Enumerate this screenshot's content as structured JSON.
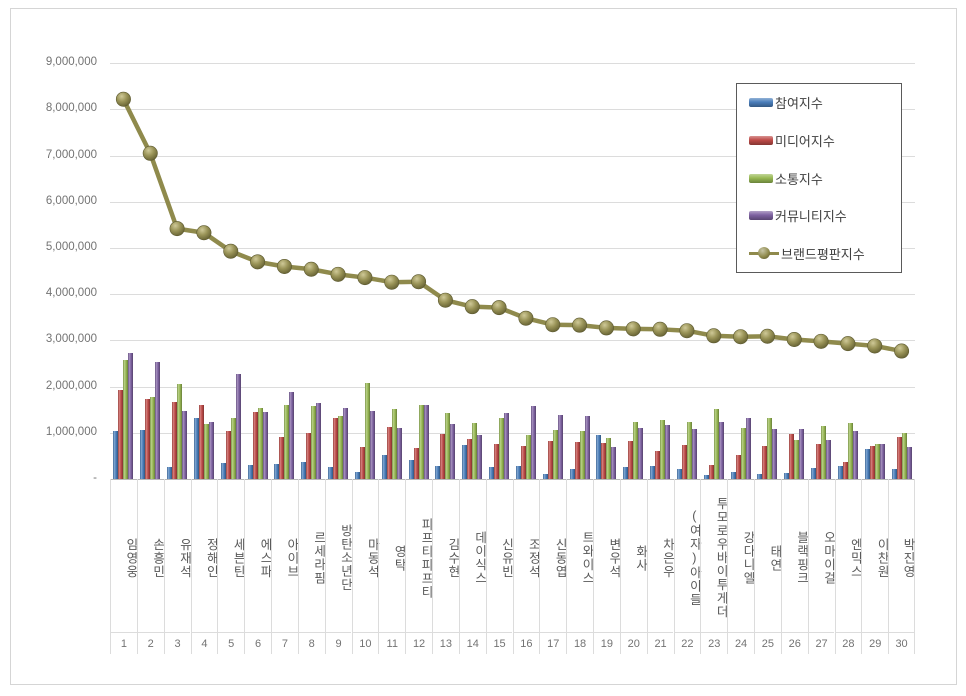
{
  "chart_data": {
    "type": "bar",
    "combo": "grouped 3D bars + line overlay",
    "title": "",
    "categories": [
      "임영웅",
      "손흥민",
      "유재석",
      "정해인",
      "세븐틴",
      "에스파",
      "아이브",
      "르세라핌",
      "방탄소년단",
      "마동석",
      "영탁",
      "피프티피프티",
      "김수현",
      "데이식스",
      "신유빈",
      "조정석",
      "신동엽",
      "트와이스",
      "변우석",
      "화사",
      "차은우",
      "(여자)아이들",
      "투모로우바이투게더",
      "강다니엘",
      "태연",
      "블랙핑크",
      "오마이걸",
      "엔믹스",
      "이찬원",
      "박진영"
    ],
    "ranks": [
      1,
      2,
      3,
      4,
      5,
      6,
      7,
      8,
      9,
      10,
      11,
      12,
      13,
      14,
      15,
      16,
      17,
      18,
      19,
      20,
      21,
      22,
      23,
      24,
      25,
      26,
      27,
      28,
      29,
      30
    ],
    "series": [
      {
        "name": "참여지수",
        "type": "bar",
        "color": "#4A7EBB",
        "values": [
          1040000,
          1050000,
          250000,
          1320000,
          340000,
          310000,
          320000,
          370000,
          260000,
          160000,
          530000,
          410000,
          290000,
          730000,
          260000,
          290000,
          110000,
          210000,
          960000,
          260000,
          280000,
          210000,
          80000,
          160000,
          110000,
          120000,
          230000,
          280000,
          640000,
          210000
        ]
      },
      {
        "name": "미디어지수",
        "type": "bar",
        "color": "#BE4B48",
        "values": [
          1920000,
          1740000,
          1670000,
          1610000,
          1040000,
          1460000,
          910000,
          1000000,
          1330000,
          700000,
          1130000,
          680000,
          980000,
          870000,
          750000,
          720000,
          830000,
          800000,
          780000,
          820000,
          600000,
          730000,
          310000,
          520000,
          710000,
          980000,
          750000,
          370000,
          710000,
          910000
        ]
      },
      {
        "name": "소통지수",
        "type": "bar",
        "color": "#98B954",
        "values": [
          2580000,
          1770000,
          2060000,
          1200000,
          1310000,
          1540000,
          1610000,
          1590000,
          1360000,
          2070000,
          1520000,
          1610000,
          1430000,
          1210000,
          1330000,
          960000,
          1050000,
          1030000,
          890000,
          1230000,
          1270000,
          1230000,
          1520000,
          1110000,
          1310000,
          850000,
          1140000,
          1220000,
          750000,
          1000000
        ]
      },
      {
        "name": "커뮤니티지수",
        "type": "bar",
        "color": "#7E62A1",
        "values": [
          2720000,
          2540000,
          1470000,
          1230000,
          2280000,
          1450000,
          1890000,
          1650000,
          1540000,
          1480000,
          1110000,
          1600000,
          1180000,
          950000,
          1430000,
          1580000,
          1380000,
          1360000,
          700000,
          1100000,
          1160000,
          1090000,
          1230000,
          1330000,
          1090000,
          1090000,
          840000,
          1040000,
          750000,
          700000
        ]
      },
      {
        "name": "브랜드평판지수",
        "type": "line",
        "color": "#8F8A4C",
        "values": [
          8220000,
          7050000,
          5420000,
          5330000,
          4930000,
          4700000,
          4600000,
          4540000,
          4430000,
          4360000,
          4260000,
          4270000,
          3870000,
          3730000,
          3710000,
          3480000,
          3340000,
          3330000,
          3270000,
          3250000,
          3240000,
          3210000,
          3100000,
          3080000,
          3090000,
          3020000,
          2980000,
          2930000,
          2880000,
          2770000
        ]
      }
    ],
    "y_axis": {
      "min": 0,
      "max": 9000000,
      "step": 1000000,
      "grid": true,
      "tick_labels": [
        "9,000,000",
        "8,000,000",
        "7,000,000",
        "6,000,000",
        "5,000,000",
        "4,000,000",
        "3,000,000",
        "2,000,000",
        "1,000,000",
        "-"
      ]
    },
    "legend_position": "top-right-inside"
  }
}
